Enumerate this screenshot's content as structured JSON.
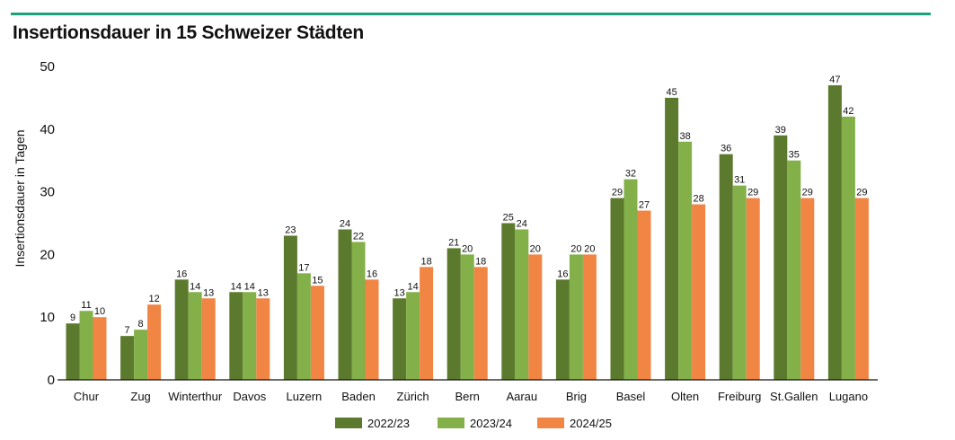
{
  "chart_data": {
    "type": "bar",
    "title": "Insertionsdauer in 15 Schweizer Städten",
    "xlabel": "",
    "ylabel": "Insertionsdauer in Tagen",
    "ylim": [
      0,
      50
    ],
    "yticks": [
      0,
      10,
      20,
      30,
      40,
      50
    ],
    "grid": false,
    "legend_position": "bottom",
    "categories": [
      "Chur",
      "Zug",
      "Winterthur",
      "Davos",
      "Luzern",
      "Baden",
      "Zürich",
      "Bern",
      "Aarau",
      "Brig",
      "Basel",
      "Olten",
      "Freiburg",
      "St.Gallen",
      "Lugano"
    ],
    "series": [
      {
        "name": "2022/23",
        "color": "#5b7a2e",
        "values": [
          9,
          7,
          16,
          14,
          23,
          24,
          13,
          21,
          25,
          16,
          29,
          45,
          36,
          39,
          47
        ]
      },
      {
        "name": "2023/24",
        "color": "#84b04a",
        "values": [
          11,
          8,
          14,
          14,
          17,
          22,
          14,
          20,
          24,
          20,
          32,
          38,
          31,
          35,
          42
        ]
      },
      {
        "name": "2024/25",
        "color": "#f08544",
        "values": [
          10,
          12,
          13,
          13,
          15,
          16,
          18,
          18,
          20,
          20,
          27,
          28,
          29,
          29,
          29
        ]
      }
    ]
  },
  "colors": {
    "accent_rule": "#1aa37a",
    "axis": "#111111"
  }
}
